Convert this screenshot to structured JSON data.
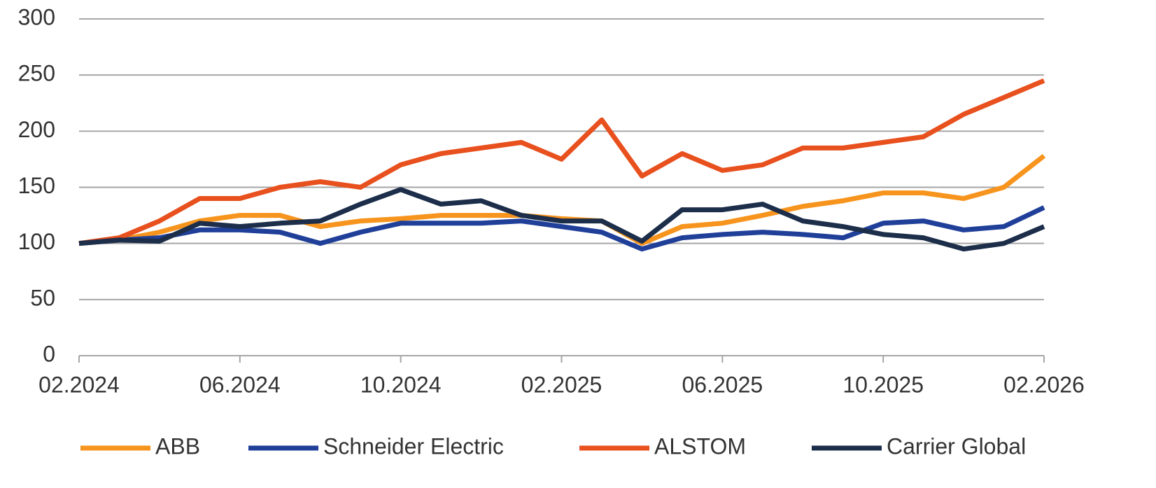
{
  "chart_data": {
    "type": "line",
    "x": [
      "02.2024",
      "03.2024",
      "04.2024",
      "05.2024",
      "06.2024",
      "07.2024",
      "08.2024",
      "09.2024",
      "10.2024",
      "11.2024",
      "12.2024",
      "01.2025",
      "02.2025",
      "03.2025",
      "04.2025",
      "05.2025",
      "06.2025",
      "07.2025",
      "08.2025",
      "09.2025",
      "10.2025",
      "11.2025",
      "12.2025",
      "01.2026",
      "02.2026"
    ],
    "xticks": [
      "02.2024",
      "06.2024",
      "10.2024",
      "02.2025",
      "06.2025",
      "10.2025",
      "02.2026"
    ],
    "ylim": [
      0,
      300
    ],
    "yticks": [
      0,
      50,
      100,
      150,
      200,
      250,
      300
    ],
    "grid": true,
    "legend": "bottom",
    "series": [
      {
        "name": "ABB",
        "color": "#f7941d",
        "values": [
          100,
          103,
          110,
          120,
          125,
          125,
          115,
          120,
          122,
          125,
          125,
          125,
          122,
          120,
          100,
          115,
          118,
          125,
          133,
          138,
          145,
          145,
          140,
          150,
          178
        ]
      },
      {
        "name": "Schneider Electric",
        "color": "#1f3f99",
        "values": [
          100,
          103,
          105,
          112,
          112,
          110,
          100,
          110,
          118,
          118,
          118,
          120,
          115,
          110,
          95,
          105,
          108,
          110,
          108,
          105,
          118,
          120,
          112,
          115,
          132
        ]
      },
      {
        "name": "ALSTOM",
        "color": "#e8501e",
        "values": [
          100,
          105,
          120,
          140,
          140,
          150,
          155,
          150,
          170,
          180,
          185,
          190,
          175,
          210,
          160,
          180,
          165,
          170,
          185,
          185,
          190,
          195,
          215,
          230,
          245
        ]
      },
      {
        "name": "Carrier Global",
        "color": "#1c2e4a",
        "values": [
          100,
          103,
          102,
          118,
          115,
          118,
          120,
          135,
          148,
          135,
          138,
          125,
          120,
          120,
          102,
          130,
          130,
          135,
          120,
          115,
          108,
          105,
          95,
          100,
          115
        ]
      }
    ]
  }
}
